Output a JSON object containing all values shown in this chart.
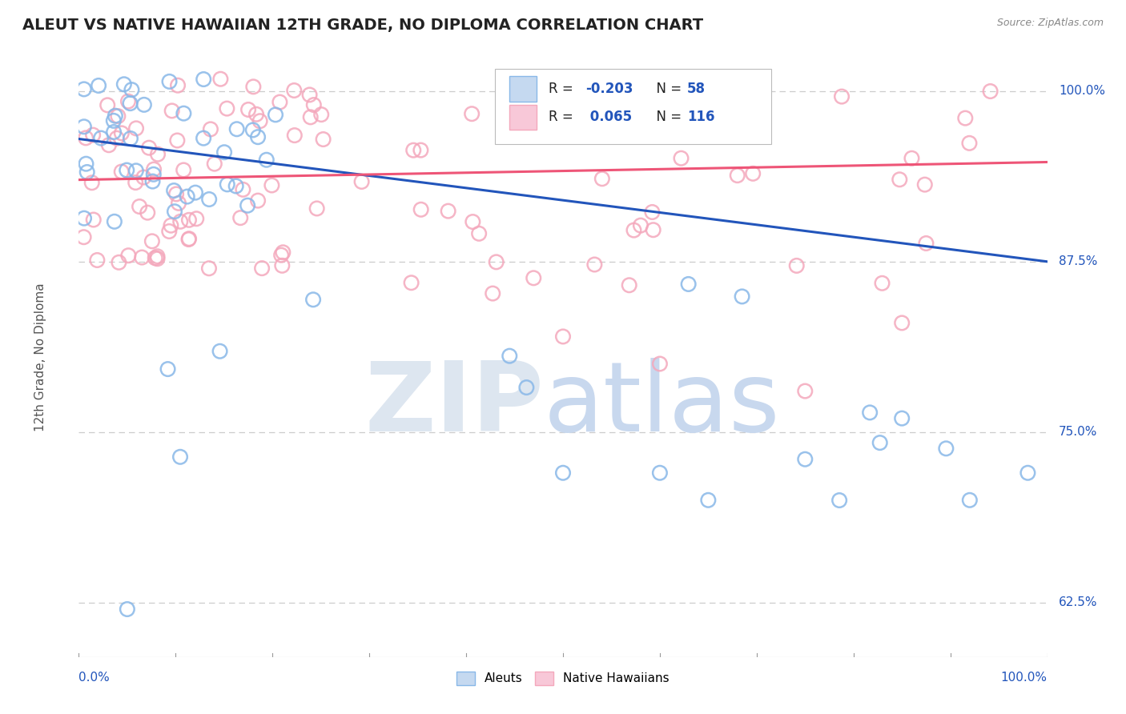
{
  "title": "ALEUT VS NATIVE HAWAIIAN 12TH GRADE, NO DIPLOMA CORRELATION CHART",
  "source_text": "Source: ZipAtlas.com",
  "ylabel": "12th Grade, No Diploma",
  "aleuts_color": "#89b8e8",
  "native_color": "#f4a8bc",
  "aleuts_edge": "#5590cc",
  "native_edge": "#e87898",
  "blue_line_color": "#2255bb",
  "pink_line_color": "#ee5577",
  "ytick_labels": [
    "62.5%",
    "75.0%",
    "87.5%",
    "100.0%"
  ],
  "ytick_values": [
    0.625,
    0.75,
    0.875,
    1.0
  ],
  "xlim": [
    0.0,
    1.0
  ],
  "ylim": [
    0.585,
    1.025
  ],
  "background_color": "#ffffff",
  "grid_color": "#cccccc",
  "title_color": "#222222",
  "source_color": "#888888",
  "axis_label_color": "#2255bb",
  "ylabel_color": "#555555",
  "title_fontsize": 14,
  "blue_line_y0": 0.965,
  "blue_line_y1": 0.875,
  "pink_line_y0": 0.935,
  "pink_line_y1": 0.948,
  "watermark_zip_color": "#dde6f0",
  "watermark_atlas_color": "#c8d8ee",
  "legend_r_color": "#2255bb",
  "legend_n_color": "#2255bb"
}
